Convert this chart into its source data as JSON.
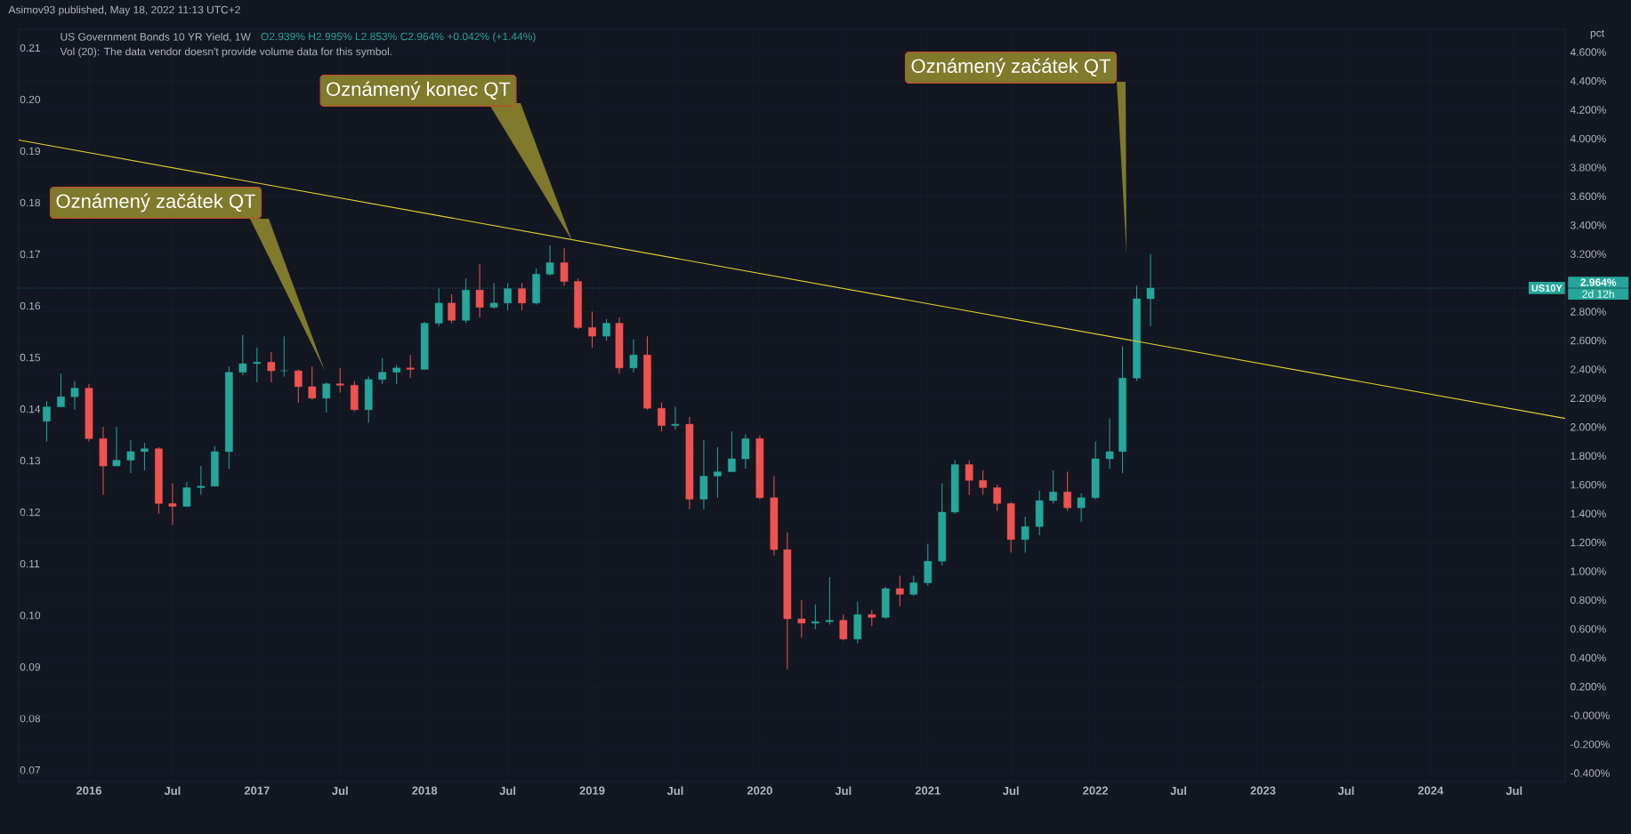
{
  "chart_data": {
    "type": "candlestick",
    "title": "US Government Bonds 10 YR Yield, 1W",
    "y2label": "pct",
    "annotations": [
      "Asimov93 published, May 18, 2022 11:13 UTC+2",
      "O2.939% H2.995% L2.853% C2.964% +0.042% (+1.44%)",
      "Vol (20): The data vendor doesn't provide volume data for this symbol.",
      "Oznámený začátek QT",
      "Oznámený konec QT",
      "Oznámený začátek QT",
      "2.964%",
      "2d 12h"
    ],
    "xlim": [
      "2015-08-01",
      "2024-10-20"
    ],
    "xticks": [
      {
        "value": "2016-01-01",
        "label": "2016"
      },
      {
        "value": "2016-07-01",
        "label": "Jul"
      },
      {
        "value": "2017-01-01",
        "label": "2017"
      },
      {
        "value": "2017-07-01",
        "label": "Jul"
      },
      {
        "value": "2018-01-01",
        "label": "2018"
      },
      {
        "value": "2018-07-01",
        "label": "Jul"
      },
      {
        "value": "2019-01-01",
        "label": "2019"
      },
      {
        "value": "2019-07-01",
        "label": "Jul"
      },
      {
        "value": "2020-01-01",
        "label": "2020"
      },
      {
        "value": "2020-07-01",
        "label": "Jul"
      },
      {
        "value": "2021-01-01",
        "label": "2021"
      },
      {
        "value": "2021-07-01",
        "label": "Jul"
      },
      {
        "value": "2022-01-01",
        "label": "2022"
      },
      {
        "value": "2022-07-01",
        "label": "Jul"
      },
      {
        "value": "2023-01-01",
        "label": "2023"
      },
      {
        "value": "2023-07-01",
        "label": "Jul"
      },
      {
        "value": "2024-01-01",
        "label": "2024"
      },
      {
        "value": "2024-07-01",
        "label": "Jul"
      }
    ],
    "ylim": [
      0.0678,
      0.2136
    ],
    "yticks": [
      {
        "value": 0.07,
        "label": "0.07"
      },
      {
        "value": 0.08,
        "label": "0.08"
      },
      {
        "value": 0.09,
        "label": "0.09"
      },
      {
        "value": 0.1,
        "label": "0.10"
      },
      {
        "value": 0.11,
        "label": "0.11"
      },
      {
        "value": 0.12,
        "label": "0.12"
      },
      {
        "value": 0.13,
        "label": "0.13"
      },
      {
        "value": 0.14,
        "label": "0.14"
      },
      {
        "value": 0.15,
        "label": "0.15"
      },
      {
        "value": 0.16,
        "label": "0.16"
      },
      {
        "value": 0.17,
        "label": "0.17"
      },
      {
        "value": 0.18,
        "label": "0.18"
      },
      {
        "value": 0.19,
        "label": "0.19"
      },
      {
        "value": 0.2,
        "label": "0.20"
      },
      {
        "value": 0.21,
        "label": "0.21"
      }
    ],
    "y2lim": [
      -0.458,
      4.758
    ],
    "y2ticks": [
      {
        "value": -0.4,
        "label": "-0.400%"
      },
      {
        "value": -0.2,
        "label": "-0.200%"
      },
      {
        "value": 0,
        "label": "-0.000%"
      },
      {
        "value": 0.2,
        "label": "0.200%"
      },
      {
        "value": 0.4,
        "label": "0.400%"
      },
      {
        "value": 0.6,
        "label": "0.600%"
      },
      {
        "value": 0.8,
        "label": "0.800%"
      },
      {
        "value": 1.0,
        "label": "1.000%"
      },
      {
        "value": 1.2,
        "label": "1.200%"
      },
      {
        "value": 1.4,
        "label": "1.400%"
      },
      {
        "value": 1.6,
        "label": "1.600%"
      },
      {
        "value": 1.8,
        "label": "1.800%"
      },
      {
        "value": 2.0,
        "label": "2.000%"
      },
      {
        "value": 2.2,
        "label": "2.200%"
      },
      {
        "value": 2.4,
        "label": "2.400%"
      },
      {
        "value": 2.6,
        "label": "2.600%"
      },
      {
        "value": 2.8,
        "label": "2.800%"
      },
      {
        "value": 3.2,
        "label": "3.200%"
      },
      {
        "value": 3.4,
        "label": "3.400%"
      },
      {
        "value": 3.6,
        "label": "3.600%"
      },
      {
        "value": 3.8,
        "label": "3.800%"
      },
      {
        "value": 4.0,
        "label": "4.000%"
      },
      {
        "value": 4.2,
        "label": "4.200%"
      },
      {
        "value": 4.4,
        "label": "4.400%"
      },
      {
        "value": 4.6,
        "label": "4.600%"
      }
    ],
    "grid": true,
    "ref_lines": [
      {
        "axis": "y2",
        "value": 2.964,
        "label": "US10Y",
        "color": "#26a69a",
        "line_style": "dotted"
      }
    ],
    "series": [
      {
        "axis": "y2",
        "x": [
          "2015-10",
          "2015-11",
          "2015-12",
          "2016-01",
          "2016-02",
          "2016-03",
          "2016-04",
          "2016-05",
          "2016-06",
          "2016-07",
          "2016-08",
          "2016-09",
          "2016-10",
          "2016-11",
          "2016-12",
          "2017-01",
          "2017-02",
          "2017-03",
          "2017-04",
          "2017-05",
          "2017-06",
          "2017-07",
          "2017-08",
          "2017-09",
          "2017-10",
          "2017-11",
          "2017-12",
          "2018-01",
          "2018-02",
          "2018-03",
          "2018-04",
          "2018-05",
          "2018-06",
          "2018-07",
          "2018-08",
          "2018-09",
          "2018-10",
          "2018-11",
          "2018-12",
          "2019-01",
          "2019-02",
          "2019-03",
          "2019-04",
          "2019-05",
          "2019-06",
          "2019-07",
          "2019-08",
          "2019-09",
          "2019-10",
          "2019-11",
          "2019-12",
          "2020-01",
          "2020-02",
          "2020-03",
          "2020-04",
          "2020-05",
          "2020-06",
          "2020-07",
          "2020-08",
          "2020-09",
          "2020-10",
          "2020-11",
          "2020-12",
          "2021-01",
          "2021-02",
          "2021-03",
          "2021-04",
          "2021-05",
          "2021-06",
          "2021-07",
          "2021-08",
          "2021-09",
          "2021-10",
          "2021-11",
          "2021-12",
          "2022-01",
          "2022-02",
          "2022-03",
          "2022-04",
          "2022-05"
        ],
        "ohlc": [
          [
            2.04,
            2.18,
            1.9,
            2.14
          ],
          [
            2.14,
            2.37,
            2.14,
            2.21
          ],
          [
            2.21,
            2.32,
            2.12,
            2.27
          ],
          [
            2.27,
            2.3,
            1.9,
            1.92
          ],
          [
            1.92,
            2.0,
            1.53,
            1.73
          ],
          [
            1.73,
            2.0,
            1.73,
            1.77
          ],
          [
            1.77,
            1.91,
            1.68,
            1.83
          ],
          [
            1.83,
            1.89,
            1.7,
            1.85
          ],
          [
            1.85,
            1.86,
            1.4,
            1.47
          ],
          [
            1.47,
            1.61,
            1.32,
            1.45
          ],
          [
            1.45,
            1.62,
            1.45,
            1.58
          ],
          [
            1.58,
            1.73,
            1.53,
            1.59
          ],
          [
            1.59,
            1.87,
            1.59,
            1.83
          ],
          [
            1.83,
            2.42,
            1.71,
            2.38
          ],
          [
            2.38,
            2.64,
            2.36,
            2.44
          ],
          [
            2.44,
            2.55,
            2.31,
            2.45
          ],
          [
            2.45,
            2.52,
            2.31,
            2.39
          ],
          [
            2.39,
            2.63,
            2.35,
            2.39
          ],
          [
            2.39,
            2.4,
            2.17,
            2.28
          ],
          [
            2.28,
            2.42,
            2.19,
            2.2
          ],
          [
            2.2,
            2.31,
            2.1,
            2.3
          ],
          [
            2.3,
            2.41,
            2.24,
            2.29
          ],
          [
            2.29,
            2.32,
            2.11,
            2.12
          ],
          [
            2.12,
            2.35,
            2.03,
            2.33
          ],
          [
            2.33,
            2.48,
            2.3,
            2.38
          ],
          [
            2.38,
            2.43,
            2.3,
            2.41
          ],
          [
            2.41,
            2.5,
            2.34,
            2.4
          ],
          [
            2.4,
            2.73,
            2.4,
            2.72
          ],
          [
            2.72,
            2.96,
            2.7,
            2.86
          ],
          [
            2.86,
            2.92,
            2.72,
            2.74
          ],
          [
            2.74,
            3.03,
            2.72,
            2.95
          ],
          [
            2.95,
            3.13,
            2.76,
            2.83
          ],
          [
            2.83,
            3.0,
            2.82,
            2.86
          ],
          [
            2.86,
            3.0,
            2.81,
            2.96
          ],
          [
            2.96,
            3.0,
            2.81,
            2.86
          ],
          [
            2.86,
            3.1,
            2.85,
            3.06
          ],
          [
            3.06,
            3.26,
            3.05,
            3.14
          ],
          [
            3.14,
            3.24,
            2.98,
            3.01
          ],
          [
            3.01,
            3.03,
            2.68,
            2.69
          ],
          [
            2.69,
            2.8,
            2.55,
            2.63
          ],
          [
            2.63,
            2.75,
            2.6,
            2.72
          ],
          [
            2.72,
            2.76,
            2.37,
            2.41
          ],
          [
            2.41,
            2.61,
            2.38,
            2.5
          ],
          [
            2.5,
            2.63,
            2.12,
            2.13
          ],
          [
            2.13,
            2.17,
            1.97,
            2.01
          ],
          [
            2.01,
            2.14,
            1.98,
            2.02
          ],
          [
            2.02,
            2.07,
            1.43,
            1.5
          ],
          [
            1.5,
            1.91,
            1.43,
            1.66
          ],
          [
            1.66,
            1.86,
            1.51,
            1.69
          ],
          [
            1.69,
            1.97,
            1.69,
            1.78
          ],
          [
            1.78,
            1.95,
            1.71,
            1.92
          ],
          [
            1.92,
            1.94,
            1.5,
            1.51
          ],
          [
            1.51,
            1.66,
            1.11,
            1.15
          ],
          [
            1.15,
            1.27,
            0.32,
            0.67
          ],
          [
            0.67,
            0.8,
            0.54,
            0.64
          ],
          [
            0.64,
            0.77,
            0.6,
            0.65
          ],
          [
            0.65,
            0.96,
            0.63,
            0.66
          ],
          [
            0.66,
            0.7,
            0.52,
            0.53
          ],
          [
            0.53,
            0.79,
            0.5,
            0.7
          ],
          [
            0.7,
            0.73,
            0.62,
            0.68
          ],
          [
            0.68,
            0.89,
            0.67,
            0.88
          ],
          [
            0.88,
            0.97,
            0.76,
            0.84
          ],
          [
            0.84,
            0.97,
            0.83,
            0.92
          ],
          [
            0.92,
            1.19,
            0.9,
            1.07
          ],
          [
            1.07,
            1.61,
            1.04,
            1.41
          ],
          [
            1.41,
            1.77,
            1.4,
            1.74
          ],
          [
            1.74,
            1.77,
            1.53,
            1.63
          ],
          [
            1.63,
            1.7,
            1.53,
            1.58
          ],
          [
            1.58,
            1.6,
            1.42,
            1.47
          ],
          [
            1.47,
            1.48,
            1.13,
            1.22
          ],
          [
            1.22,
            1.38,
            1.13,
            1.31
          ],
          [
            1.31,
            1.56,
            1.25,
            1.49
          ],
          [
            1.49,
            1.7,
            1.47,
            1.55
          ],
          [
            1.55,
            1.69,
            1.42,
            1.44
          ],
          [
            1.44,
            1.54,
            1.34,
            1.51
          ],
          [
            1.51,
            1.9,
            1.5,
            1.78
          ],
          [
            1.78,
            2.06,
            1.71,
            1.83
          ],
          [
            1.83,
            2.56,
            1.68,
            2.34
          ],
          [
            2.34,
            2.98,
            2.32,
            2.89
          ],
          [
            2.89,
            3.2,
            2.7,
            2.964
          ]
        ]
      },
      {
        "type": "line",
        "axis": "y2",
        "color": "#e0d12c",
        "line_style": "solid",
        "x": [
          "2015-08-01",
          "2024-10-20"
        ],
        "values": [
          3.99,
          2.06
        ]
      }
    ]
  }
}
